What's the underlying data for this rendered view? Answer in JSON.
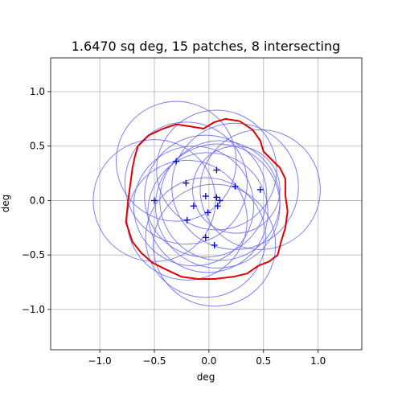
{
  "chart_data": {
    "type": "scatter",
    "title": "1.6470 sq deg, 15 patches, 8 intersecting",
    "xlabel": "deg",
    "ylabel": "deg",
    "xlim": [
      -1.45,
      1.4
    ],
    "ylim": [
      -1.37,
      1.31
    ],
    "xticks": [
      -1.0,
      -0.5,
      0.0,
      0.5,
      1.0
    ],
    "yticks": [
      -1.0,
      -0.5,
      0.0,
      0.5,
      1.0
    ],
    "xtick_labels": [
      "−1.0",
      "−0.5",
      "0.0",
      "0.5",
      "1.0"
    ],
    "ytick_labels": [
      "−1.0",
      "−0.5",
      "0.0",
      "0.5",
      "1.0"
    ],
    "grid": true,
    "colors": {
      "patch": "#6a6aee",
      "boundary": "#e00000",
      "point": "#0000d0"
    },
    "patches": [
      {
        "cx": -0.3,
        "cy": 0.36,
        "r": 0.55
      },
      {
        "cx": -0.5,
        "cy": 0.0,
        "r": 0.56
      },
      {
        "cx": 0.07,
        "cy": 0.28,
        "r": 0.55
      },
      {
        "cx": 0.47,
        "cy": 0.1,
        "r": 0.55
      },
      {
        "cx": 0.24,
        "cy": 0.13,
        "r": 0.58
      },
      {
        "cx": -0.21,
        "cy": 0.16,
        "r": 0.56
      },
      {
        "cx": 0.1,
        "cy": 0.0,
        "r": 0.55
      },
      {
        "cx": 0.08,
        "cy": -0.05,
        "r": 0.57
      },
      {
        "cx": -0.14,
        "cy": -0.05,
        "r": 0.55
      },
      {
        "cx": -0.2,
        "cy": -0.18,
        "r": 0.55
      },
      {
        "cx": -0.03,
        "cy": 0.04,
        "r": 0.56
      },
      {
        "cx": -0.01,
        "cy": -0.11,
        "r": 0.55
      },
      {
        "cx": -0.03,
        "cy": -0.34,
        "r": 0.55
      },
      {
        "cx": 0.05,
        "cy": -0.41,
        "r": 0.56
      },
      {
        "cx": 0.25,
        "cy": 0.1,
        "r": 0.4
      }
    ],
    "points": [
      {
        "x": -0.3,
        "y": 0.36
      },
      {
        "x": -0.5,
        "y": 0.0
      },
      {
        "x": 0.07,
        "y": 0.28
      },
      {
        "x": 0.47,
        "y": 0.1
      },
      {
        "x": 0.24,
        "y": 0.13
      },
      {
        "x": -0.21,
        "y": 0.16
      },
      {
        "x": 0.1,
        "y": 0.0
      },
      {
        "x": 0.08,
        "y": -0.05
      },
      {
        "x": -0.14,
        "y": -0.05
      },
      {
        "x": -0.2,
        "y": -0.18
      },
      {
        "x": -0.03,
        "y": 0.04
      },
      {
        "x": -0.01,
        "y": -0.11
      },
      {
        "x": -0.03,
        "y": -0.34
      },
      {
        "x": 0.05,
        "y": -0.41
      },
      {
        "x": 0.07,
        "y": 0.03
      }
    ],
    "boundary": [
      [
        -0.65,
        0.5
      ],
      [
        -0.55,
        0.6
      ],
      [
        -0.42,
        0.66
      ],
      [
        -0.3,
        0.7
      ],
      [
        -0.17,
        0.68
      ],
      [
        -0.05,
        0.66
      ],
      [
        0.05,
        0.72
      ],
      [
        0.15,
        0.75
      ],
      [
        0.28,
        0.73
      ],
      [
        0.4,
        0.65
      ],
      [
        0.47,
        0.55
      ],
      [
        0.5,
        0.45
      ],
      [
        0.57,
        0.38
      ],
      [
        0.65,
        0.3
      ],
      [
        0.7,
        0.2
      ],
      [
        0.7,
        0.05
      ],
      [
        0.72,
        -0.1
      ],
      [
        0.7,
        -0.25
      ],
      [
        0.66,
        -0.38
      ],
      [
        0.63,
        -0.5
      ],
      [
        0.55,
        -0.56
      ],
      [
        0.45,
        -0.6
      ],
      [
        0.35,
        -0.67
      ],
      [
        0.22,
        -0.7
      ],
      [
        0.05,
        -0.72
      ],
      [
        -0.1,
        -0.72
      ],
      [
        -0.25,
        -0.7
      ],
      [
        -0.4,
        -0.63
      ],
      [
        -0.52,
        -0.57
      ],
      [
        -0.62,
        -0.48
      ],
      [
        -0.7,
        -0.38
      ],
      [
        -0.76,
        -0.2
      ],
      [
        -0.74,
        0.0
      ],
      [
        -0.72,
        0.15
      ],
      [
        -0.7,
        0.3
      ],
      [
        -0.68,
        0.4
      ]
    ]
  }
}
